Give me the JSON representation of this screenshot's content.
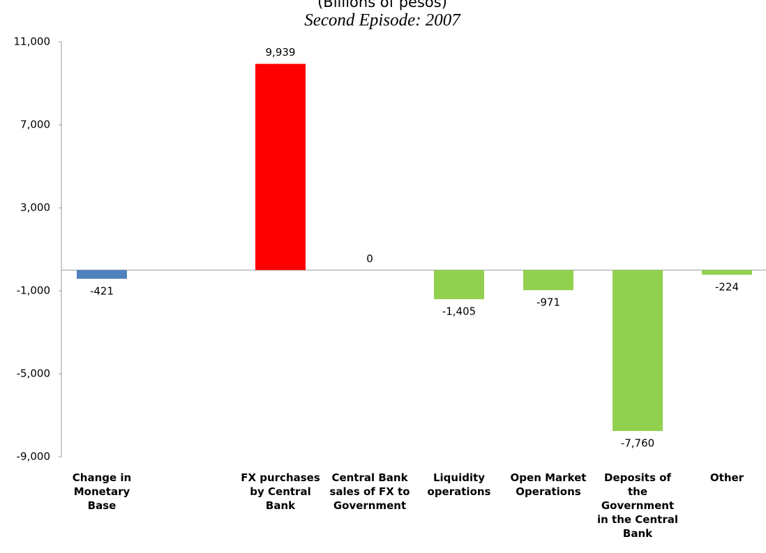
{
  "chart_data": {
    "type": "bar",
    "subtitle": "(Billions of pesos)",
    "title": "Second Episode: 2007",
    "categories": [
      "Change in Monetary Base",
      null,
      "FX purchases by Central Bank",
      "Central Bank sales of FX to Government",
      "Liquidity operations",
      "Open Market Operations",
      "Deposits of the Government in the Central Bank",
      "Other"
    ],
    "values": [
      -421,
      null,
      9939,
      0,
      -1405,
      -971,
      -7760,
      -224
    ],
    "value_labels": [
      "-421",
      null,
      "9,939",
      "0",
      "-1,405",
      "-971",
      "-7,760",
      "-224"
    ],
    "colors": [
      "#4f81bd",
      null,
      "#ff0000",
      "#92d050",
      "#92d050",
      "#92d050",
      "#92d050",
      "#92d050"
    ],
    "ylim": [
      -9000,
      11000
    ],
    "yticks": [
      {
        "value": -9000,
        "label": "-9,000"
      },
      {
        "value": -5000,
        "label": "-5,000"
      },
      {
        "value": -1000,
        "label": "-1,000"
      },
      {
        "value": 3000,
        "label": "3,000"
      },
      {
        "value": 7000,
        "label": "7,000"
      },
      {
        "value": 11000,
        "label": "11,000"
      }
    ],
    "grid": false
  }
}
